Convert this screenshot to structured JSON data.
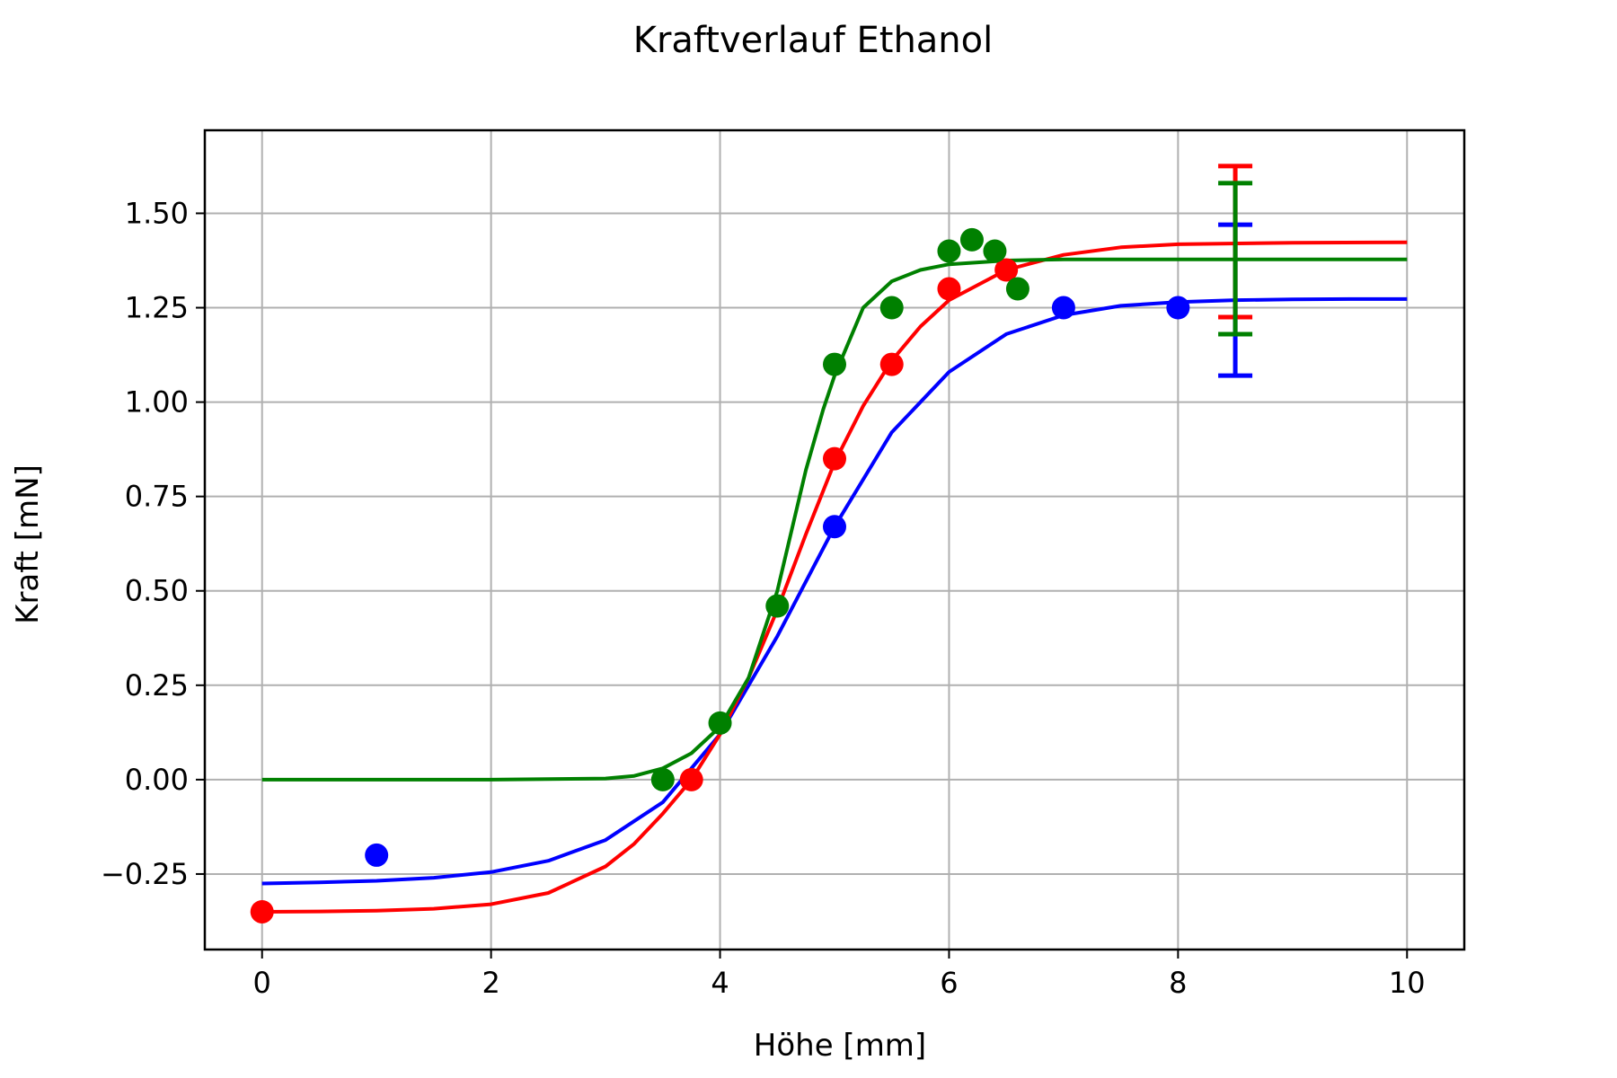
{
  "chart_data": {
    "type": "scatter",
    "title": "Kraftverlauf Ethanol",
    "xlabel": "Höhe [mm]",
    "ylabel": "Kraft [mN]",
    "xlim": [
      -0.5,
      10.5
    ],
    "ylim": [
      -0.45,
      1.72
    ],
    "xticks": [
      0,
      2,
      4,
      6,
      8,
      10
    ],
    "xtick_labels": [
      "0",
      "2",
      "4",
      "6",
      "8",
      "10"
    ],
    "yticks": [
      -0.25,
      0,
      0.25,
      0.5,
      0.75,
      1.0,
      1.25,
      1.5
    ],
    "ytick_labels": [
      "−0.25",
      "0.00",
      "0.25",
      "0.50",
      "0.75",
      "1.00",
      "1.25",
      "1.50"
    ],
    "grid": true,
    "series": [
      {
        "color": "#0000ff",
        "points": {
          "x": [
            1,
            5,
            7,
            8
          ],
          "y": [
            -0.2,
            0.67,
            1.25,
            1.25
          ]
        },
        "fit": {
          "x": [
            0,
            0.5,
            1,
            1.5,
            2,
            2.5,
            3,
            3.5,
            4,
            4.5,
            5,
            5.5,
            6,
            6.5,
            7,
            7.5,
            8,
            8.5,
            9,
            9.5,
            10
          ],
          "y": [
            -0.275,
            -0.272,
            -0.268,
            -0.26,
            -0.245,
            -0.215,
            -0.16,
            -0.06,
            0.12,
            0.38,
            0.67,
            0.92,
            1.08,
            1.18,
            1.23,
            1.255,
            1.265,
            1.27,
            1.272,
            1.273,
            1.273
          ]
        },
        "errorbar": {
          "x": 8.5,
          "y": 1.27,
          "low": 1.07,
          "high": 1.47
        }
      },
      {
        "color": "#ff0000",
        "points": {
          "x": [
            0,
            3.75,
            5,
            5.5,
            6,
            6.5
          ],
          "y": [
            -0.35,
            0,
            0.85,
            1.1,
            1.3,
            1.35
          ]
        },
        "fit": {
          "x": [
            0,
            0.5,
            1,
            1.5,
            2,
            2.5,
            3,
            3.25,
            3.5,
            3.75,
            4,
            4.25,
            4.5,
            4.75,
            5,
            5.25,
            5.5,
            5.75,
            6,
            6.5,
            7,
            7.5,
            8,
            9,
            10
          ],
          "y": [
            -0.35,
            -0.349,
            -0.347,
            -0.342,
            -0.33,
            -0.3,
            -0.23,
            -0.17,
            -0.09,
            0.0,
            0.12,
            0.27,
            0.45,
            0.65,
            0.84,
            0.99,
            1.11,
            1.2,
            1.27,
            1.35,
            1.39,
            1.41,
            1.418,
            1.422,
            1.423
          ]
        },
        "errorbar": {
          "x": 8.5,
          "y": 1.425,
          "low": 1.225,
          "high": 1.625
        }
      },
      {
        "color": "#008000",
        "points": {
          "x": [
            3.5,
            4,
            4.5,
            5,
            5.5,
            6,
            6.2,
            6.4,
            6.6
          ],
          "y": [
            0,
            0.15,
            0.46,
            1.1,
            1.25,
            1.4,
            1.43,
            1.4,
            1.3
          ]
        },
        "fit": {
          "x": [
            0,
            1,
            2,
            3,
            3.25,
            3.5,
            3.75,
            4,
            4.25,
            4.5,
            4.75,
            4.9,
            5,
            5.25,
            5.5,
            5.75,
            6,
            6.5,
            7,
            8,
            9,
            10
          ],
          "y": [
            0,
            0,
            0,
            0.003,
            0.01,
            0.03,
            0.07,
            0.14,
            0.27,
            0.5,
            0.82,
            0.98,
            1.07,
            1.25,
            1.32,
            1.35,
            1.365,
            1.375,
            1.378,
            1.378,
            1.378,
            1.378
          ]
        },
        "errorbar": {
          "x": 8.5,
          "y": 1.38,
          "low": 1.18,
          "high": 1.58
        }
      }
    ]
  }
}
